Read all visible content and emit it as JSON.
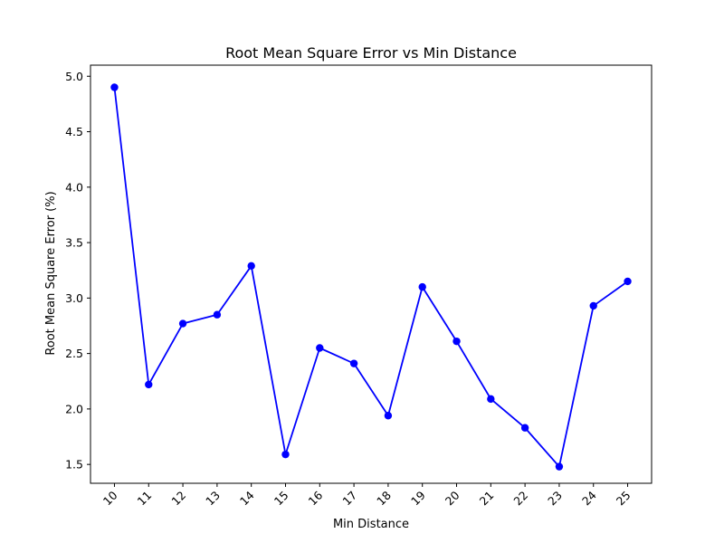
{
  "chart_data": {
    "type": "line",
    "title": "Root Mean Square Error vs Min Distance",
    "xlabel": "Min Distance",
    "ylabel": "Root Mean Square Error (%)",
    "ylim": [
      1.33,
      5.1
    ],
    "yticks": [
      "1.5",
      "2.0",
      "2.5",
      "3.0",
      "3.5",
      "4.0",
      "4.5",
      "5.0"
    ],
    "x": [
      10,
      11,
      12,
      13,
      14,
      15,
      16,
      17,
      18,
      19,
      20,
      21,
      22,
      23,
      24,
      25
    ],
    "series": [
      {
        "color": "#0000ff",
        "marker": "circle",
        "values": [
          4.9,
          2.22,
          2.77,
          2.85,
          3.29,
          1.59,
          2.55,
          2.41,
          1.94,
          3.1,
          2.61,
          2.09,
          1.83,
          1.48,
          2.93,
          3.15
        ]
      }
    ],
    "grid": false,
    "legend": "none",
    "xtick_rotation": 45
  }
}
